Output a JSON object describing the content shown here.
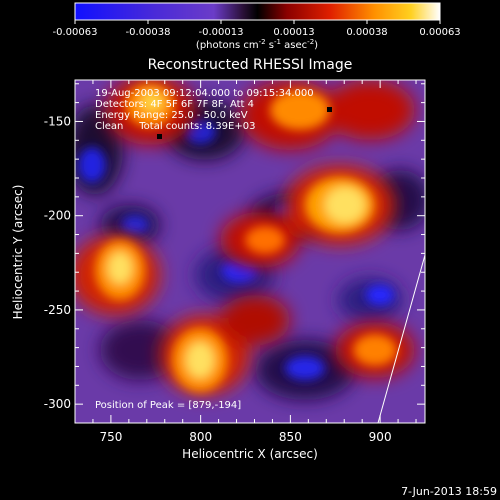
{
  "colorbar": {
    "ticks": [
      "-0.00063",
      "-0.00038",
      "-0.00013",
      "0.00013",
      "0.00038",
      "0.00063"
    ],
    "units_text": "(photons cm",
    "units_sup1": "-2",
    "units_mid": " s",
    "units_sup2": "-1",
    "units_mid2": " asec",
    "units_sup3": "-2",
    "units_end": ")"
  },
  "chart_data": {
    "type": "heatmap",
    "title": "Reconstructed RHESSI Image",
    "xlabel": "Heliocentric X (arcsec)",
    "ylabel": "Heliocentric Y (arcsec)",
    "xlim": [
      730,
      925
    ],
    "ylim": [
      -310,
      -128
    ],
    "x_ticks": [
      "750",
      "800",
      "850",
      "900"
    ],
    "y_ticks": [
      "-150",
      "-200",
      "-250",
      "-300"
    ],
    "x_tick_values": [
      750,
      800,
      850,
      900
    ],
    "y_tick_values": [
      -150,
      -200,
      -250,
      -300
    ],
    "value_range": [
      -0.00063,
      0.00063
    ],
    "peak": [
      879,
      -194
    ],
    "annotations": [
      "19-Aug-2003 09:12:04.000 to 09:15:34.000",
      "Detectors: 4F 5F 6F 7F 8F, Att 4",
      "Energy Range: 25.0 - 50.0 keV",
      "Clean     Total counts: 8.39E+03"
    ],
    "peak_label": "Position of Peak = [879,-194]",
    "footer_date": "7-Jun-2013 18:59"
  }
}
